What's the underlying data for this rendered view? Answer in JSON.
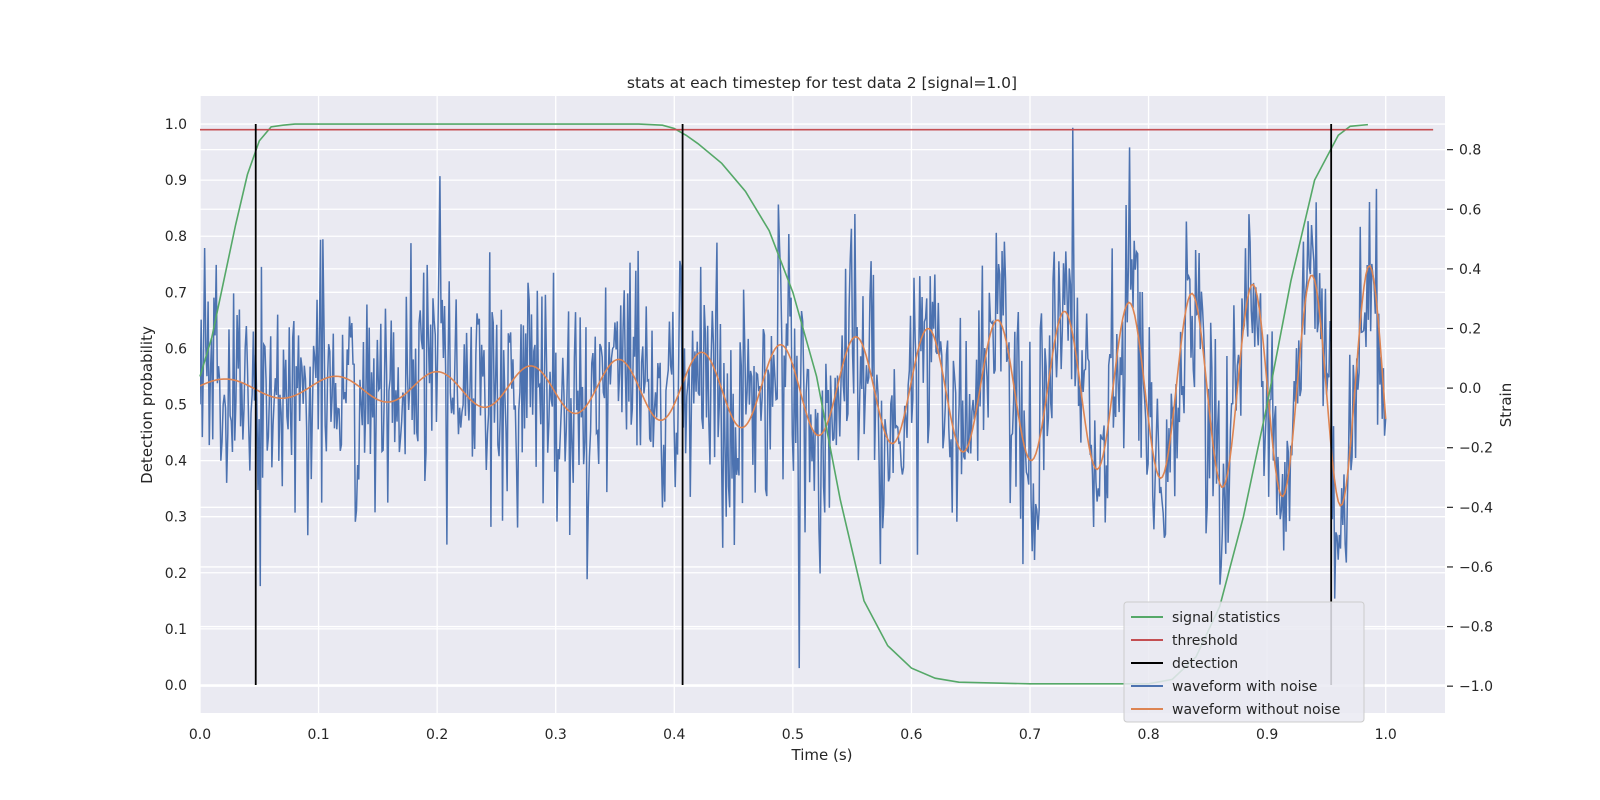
{
  "chart_data": {
    "type": "line",
    "title": "stats at each timestep for test data 2 [signal=1.0]",
    "xlabel": "Time (s)",
    "ylabel": "Detection probability",
    "y2label": "Strain",
    "xlim": [
      0.0,
      1.05
    ],
    "ylim": [
      -0.05,
      1.05
    ],
    "y2lim": [
      -1.09,
      0.98
    ],
    "xticks": [
      0.0,
      0.1,
      0.2,
      0.3,
      0.4,
      0.5,
      0.6,
      0.7,
      0.8,
      0.9,
      1.0
    ],
    "xtick_labels": [
      "0.0",
      "0.1",
      "0.2",
      "0.3",
      "0.4",
      "0.5",
      "0.6",
      "0.7",
      "0.8",
      "0.9",
      "1.0"
    ],
    "yticks": [
      0.0,
      0.1,
      0.2,
      0.3,
      0.4,
      0.5,
      0.6,
      0.7,
      0.8,
      0.9,
      1.0
    ],
    "ytick_labels": [
      "0.0",
      "0.1",
      "0.2",
      "0.3",
      "0.4",
      "0.5",
      "0.6",
      "0.7",
      "0.8",
      "0.9",
      "1.0"
    ],
    "y2ticks": [
      -1.0,
      -0.8,
      -0.6,
      -0.4,
      -0.2,
      0.0,
      0.2,
      0.4,
      0.6,
      0.8
    ],
    "y2tick_labels": [
      "−1.0",
      "−0.8",
      "−0.6",
      "−0.4",
      "−0.2",
      "0.0",
      "0.2",
      "0.4",
      "0.6",
      "0.8"
    ],
    "grid": true,
    "legend_position": "bottom-right",
    "threshold": 0.99,
    "threshold_x": [
      0.0,
      1.04
    ],
    "detections": [
      0.047,
      0.407,
      0.954
    ],
    "colors": {
      "background": "#eaeaf2",
      "grid": "#ffffff",
      "signal_statistics": "#55a868",
      "threshold": "#c44e52",
      "detection": "#000000",
      "waveform_noise": "#4c72b0",
      "waveform_clean": "#dd8452"
    },
    "legend": [
      {
        "name": "signal statistics",
        "color": "#55a868"
      },
      {
        "name": "threshold",
        "color": "#c44e52"
      },
      {
        "name": "detection",
        "color": "#000000"
      },
      {
        "name": "waveform with noise",
        "color": "#4c72b0"
      },
      {
        "name": "waveform without noise",
        "color": "#dd8452"
      }
    ],
    "signal_statistics": {
      "x": [
        0.0,
        0.01,
        0.02,
        0.03,
        0.04,
        0.05,
        0.06,
        0.07,
        0.08,
        0.1,
        0.2,
        0.3,
        0.37,
        0.39,
        0.4,
        0.41,
        0.42,
        0.44,
        0.46,
        0.48,
        0.5,
        0.52,
        0.54,
        0.56,
        0.58,
        0.6,
        0.62,
        0.64,
        0.7,
        0.8,
        0.82,
        0.84,
        0.86,
        0.88,
        0.9,
        0.92,
        0.94,
        0.96,
        0.97,
        0.985
      ],
      "y": [
        0.55,
        0.62,
        0.72,
        0.82,
        0.91,
        0.97,
        0.995,
        0.998,
        1.0,
        1.0,
        1.0,
        1.0,
        1.0,
        0.998,
        0.992,
        0.98,
        0.965,
        0.93,
        0.88,
        0.81,
        0.7,
        0.55,
        0.33,
        0.15,
        0.07,
        0.03,
        0.012,
        0.005,
        0.002,
        0.002,
        0.01,
        0.05,
        0.14,
        0.3,
        0.5,
        0.72,
        0.9,
        0.98,
        0.996,
        0.999
      ]
    },
    "waveform_noise": {
      "x_start": 0.0,
      "x_end": 1.0,
      "n_points": 1024,
      "noise_sigma": 0.2,
      "noise_seed": 7
    },
    "waveform_clean": {
      "x_start": 0.0,
      "x_end": 1.0,
      "start_frequency_hz": 10,
      "end_frequency_hz": 21,
      "start_amplitude": 0.03,
      "end_amplitude": 0.42,
      "phase": 0.25
    }
  }
}
